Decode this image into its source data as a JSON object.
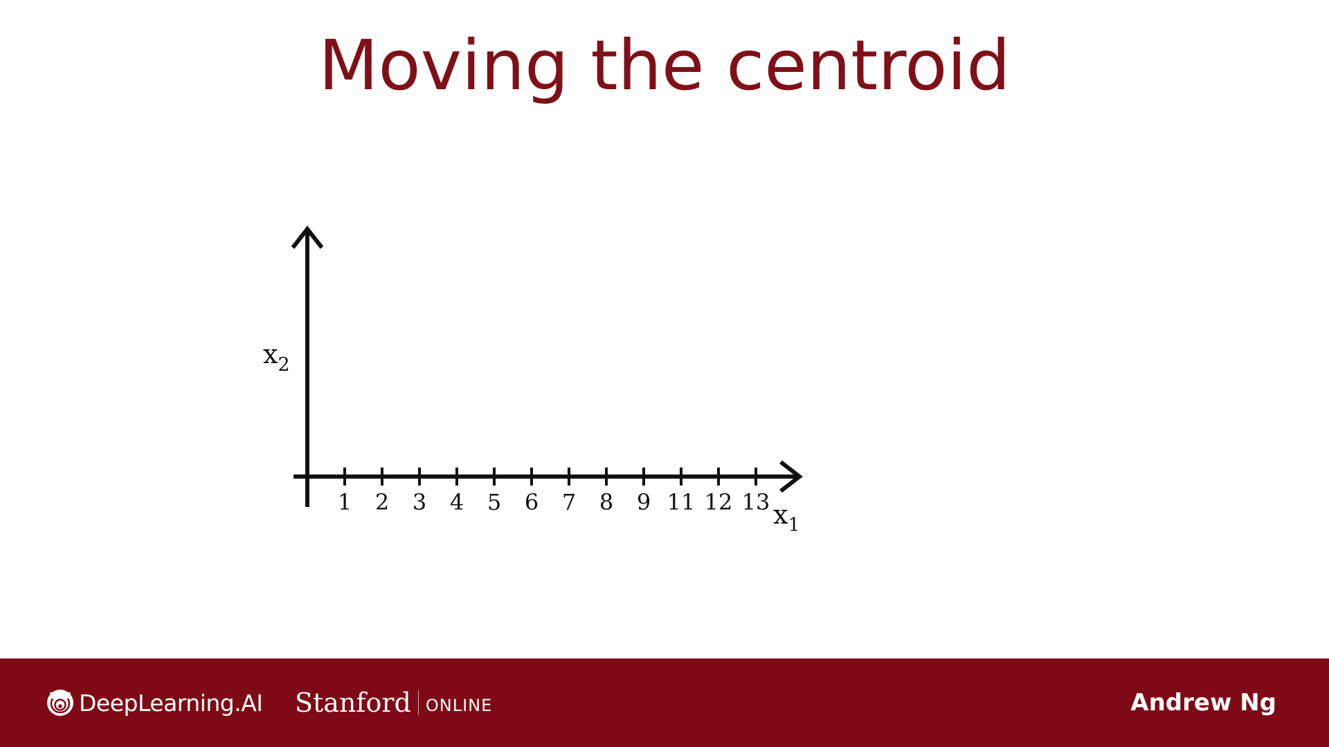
{
  "slide": {
    "title": "Moving the centroid"
  },
  "chart_data": {
    "type": "scatter",
    "xlabel": "x",
    "xlabel_sub": "1",
    "ylabel": "x",
    "ylabel_sub": "2",
    "x_ticks": [
      1,
      2,
      3,
      4,
      5,
      6,
      7,
      8,
      9,
      11,
      12,
      13
    ],
    "series": []
  },
  "footer": {
    "brand_deeplearning": "DeepLearning.AI",
    "brand_stanford": "Stanford",
    "brand_online": "ONLINE",
    "presenter": "Andrew Ng",
    "logo_icon": "deeplearning-ai-logo-icon",
    "background_color": "#7e0a16",
    "title_color": "#7f1018"
  }
}
